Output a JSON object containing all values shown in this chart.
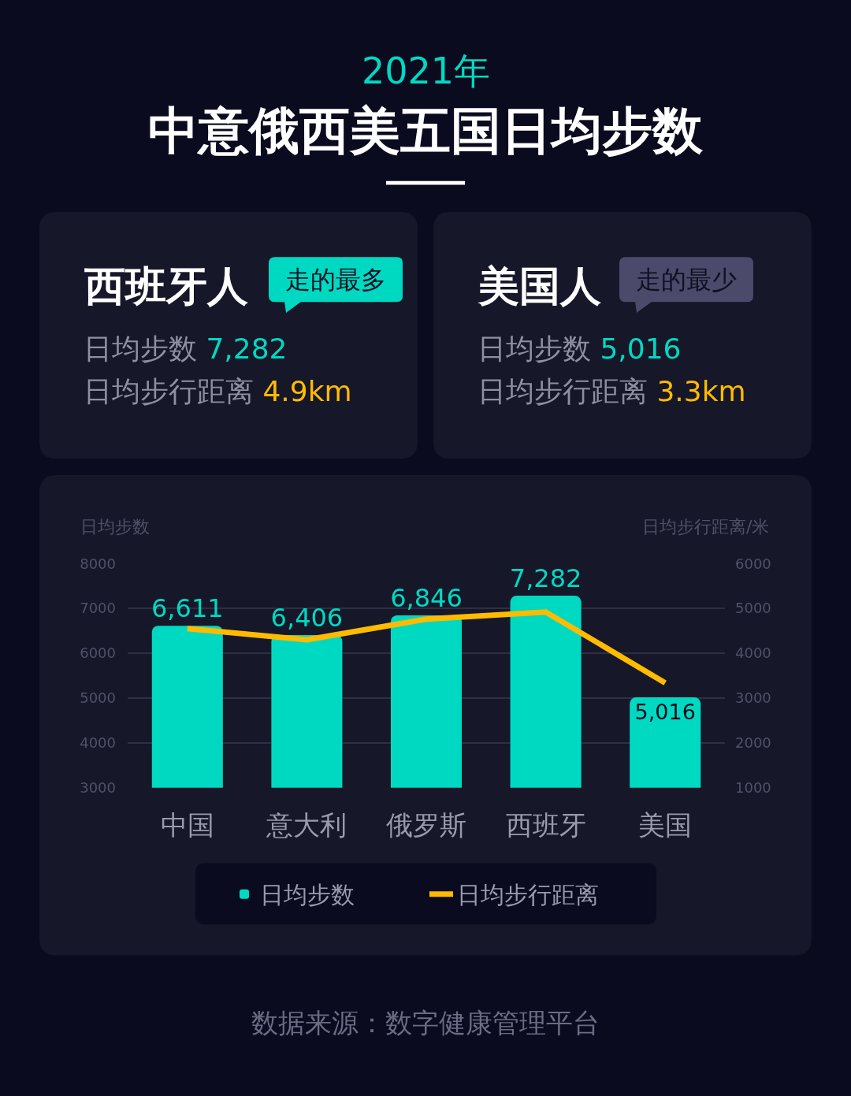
{
  "chart_data": [
    {
      "type": "other",
      "title": "西班牙人",
      "annotations": [
        "走的最多"
      ],
      "categories": [
        "日均步数",
        "日均步行距离"
      ],
      "value_labels": [
        "7,282",
        "4.9km"
      ]
    },
    {
      "type": "other",
      "title": "美国人",
      "annotations": [
        "走的最少"
      ],
      "categories": [
        "日均步数",
        "日均步行距离"
      ],
      "value_labels": [
        "5,016",
        "3.3km"
      ]
    },
    {
      "type": "bar",
      "title": "中意俄西美五国日均步数",
      "subtitle": "2021年",
      "ylabel": "日均步数",
      "y2label": "日均步行距离/米",
      "categories": [
        "中国",
        "意大利",
        "俄罗斯",
        "西班牙",
        "美国"
      ],
      "series": [
        {
          "name": "日均步数",
          "type": "bar",
          "color": "#00d9c2",
          "values": [
            6611,
            6406,
            6846,
            7282,
            5016
          ],
          "value_labels": [
            "6,611",
            "6,406",
            "6,846",
            "7,282",
            "5,016"
          ]
        },
        {
          "name": "日均步行距离",
          "type": "line",
          "axis": "y2",
          "color": "#ffbb00",
          "values": [
            4550,
            4300,
            4760,
            4920,
            3340
          ]
        }
      ],
      "ylim": [
        3000,
        8000
      ],
      "yticks": [
        3000,
        4000,
        5000,
        6000,
        7000,
        8000
      ],
      "y2lim": [
        1000,
        6000
      ],
      "y2ticks": [
        1000,
        2000,
        3000,
        4000,
        5000,
        6000
      ],
      "grid": "y",
      "legend": "bottom",
      "annotations": [
        "数据来源：数字健康管理平台"
      ]
    }
  ]
}
